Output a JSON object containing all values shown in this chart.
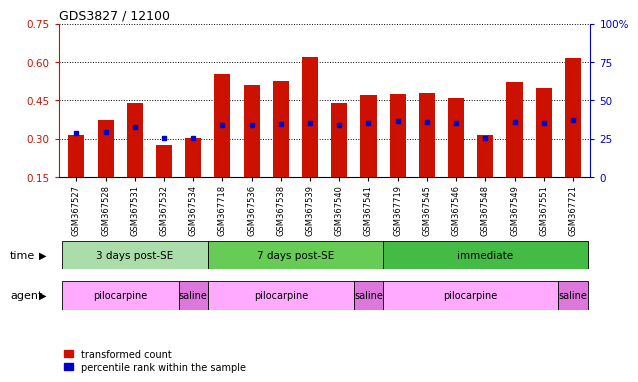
{
  "title": "GDS3827 / 12100",
  "samples": [
    "GSM367527",
    "GSM367528",
    "GSM367531",
    "GSM367532",
    "GSM367534",
    "GSM367718",
    "GSM367536",
    "GSM367538",
    "GSM367539",
    "GSM367540",
    "GSM367541",
    "GSM367719",
    "GSM367545",
    "GSM367546",
    "GSM367548",
    "GSM367549",
    "GSM367551",
    "GSM367721"
  ],
  "red_values": [
    0.315,
    0.375,
    0.44,
    0.275,
    0.305,
    0.555,
    0.51,
    0.525,
    0.62,
    0.44,
    0.47,
    0.475,
    0.48,
    0.46,
    0.315,
    0.52,
    0.5,
    0.615
  ],
  "blue_values": [
    0.322,
    0.327,
    0.345,
    0.302,
    0.305,
    0.355,
    0.355,
    0.358,
    0.36,
    0.355,
    0.36,
    0.37,
    0.365,
    0.36,
    0.305,
    0.365,
    0.36,
    0.375
  ],
  "ylim_left": [
    0.15,
    0.75
  ],
  "ylim_right": [
    0,
    100
  ],
  "yticks_left": [
    0.15,
    0.3,
    0.45,
    0.6,
    0.75
  ],
  "yticks_right": [
    0,
    25,
    50,
    75,
    100
  ],
  "ytick_labels_left": [
    "0.15",
    "0.30",
    "0.45",
    "0.60",
    "0.75"
  ],
  "ytick_labels_right": [
    "0",
    "25",
    "50",
    "75",
    "100%"
  ],
  "bar_color": "#cc1100",
  "marker_color": "#0000cc",
  "time_groups": [
    {
      "label": "3 days post-SE",
      "start": 0,
      "end": 5,
      "color": "#aaddaa"
    },
    {
      "label": "7 days post-SE",
      "start": 5,
      "end": 11,
      "color": "#66cc55"
    },
    {
      "label": "immediate",
      "start": 11,
      "end": 18,
      "color": "#44bb44"
    }
  ],
  "agent_groups": [
    {
      "label": "pilocarpine",
      "start": 0,
      "end": 4,
      "color": "#ffaaff"
    },
    {
      "label": "saline",
      "start": 4,
      "end": 5,
      "color": "#dd77dd"
    },
    {
      "label": "pilocarpine",
      "start": 5,
      "end": 10,
      "color": "#ffaaff"
    },
    {
      "label": "saline",
      "start": 10,
      "end": 11,
      "color": "#dd77dd"
    },
    {
      "label": "pilocarpine",
      "start": 11,
      "end": 17,
      "color": "#ffaaff"
    },
    {
      "label": "saline",
      "start": 17,
      "end": 18,
      "color": "#dd77dd"
    }
  ],
  "legend_items": [
    {
      "label": "transformed count",
      "color": "#cc1100"
    },
    {
      "label": "percentile rank within the sample",
      "color": "#0000cc"
    }
  ]
}
